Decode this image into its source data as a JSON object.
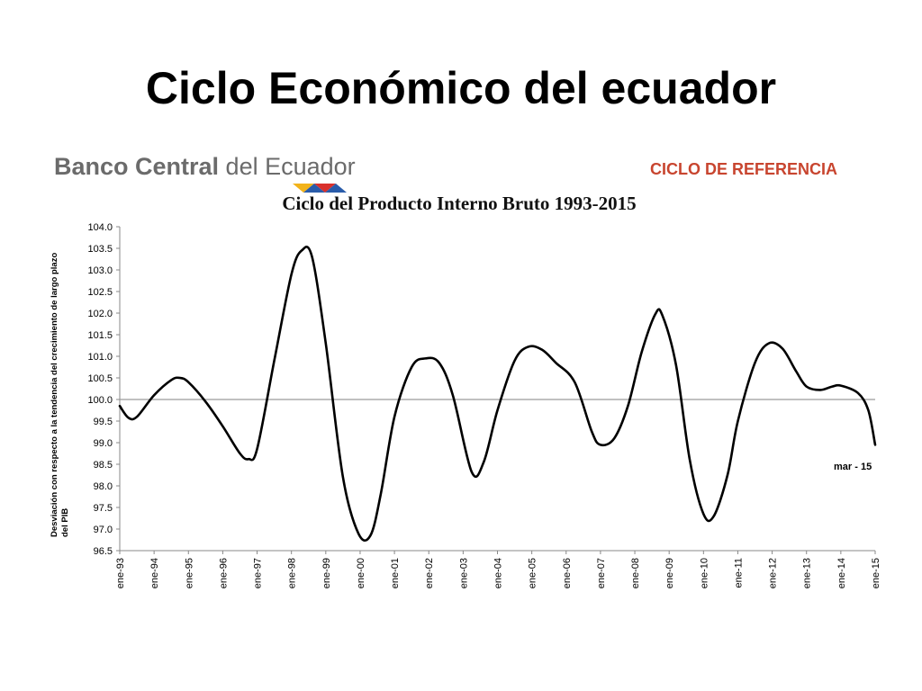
{
  "slide": {
    "title": "Ciclo Económico del ecuador"
  },
  "logo": {
    "bold_text": "Banco Central",
    "text": " del Ecuador",
    "colors": [
      "#f2b31b",
      "#2a5caa",
      "#d9302c"
    ]
  },
  "reference_label": "CICLO DE REFERENCIA",
  "chart_data": {
    "type": "line",
    "title": "Ciclo del Producto Interno Bruto 1993-2015",
    "ylabel_line1": "Desviación  con respecto a  la tendencia del crecimiento de largo plazo",
    "ylabel_line2": "del PIB",
    "ylim": [
      96.5,
      104.0
    ],
    "yticks": [
      "96.5",
      "97.0",
      "97.5",
      "98.0",
      "98.5",
      "99.0",
      "99.5",
      "100.0",
      "100.5",
      "101.0",
      "101.5",
      "102.0",
      "102.5",
      "103.0",
      "103.5",
      "104.0"
    ],
    "xlabels": [
      "ene-93",
      "ene-94",
      "ene-95",
      "ene-96",
      "ene-97",
      "ene-98",
      "ene-99",
      "ene-00",
      "ene-01",
      "ene-02",
      "ene-03",
      "ene-04",
      "ene-05",
      "ene-06",
      "ene-07",
      "ene-08",
      "ene-09",
      "ene-10",
      "ene-11",
      "ene-12",
      "ene-13",
      "ene-14",
      "ene-15"
    ],
    "xrange": [
      1993.0,
      2015.0
    ],
    "reference_line": 100.0,
    "grid": false,
    "annotation": "mar - 15",
    "series": [
      {
        "x": [
          1993.0,
          1993.25,
          1993.5,
          1994.0,
          1994.5,
          1994.75,
          1995.0,
          1995.5,
          1996.0,
          1996.5,
          1996.75,
          1997.0,
          1997.5,
          1998.0,
          1998.3,
          1998.6,
          1999.0,
          1999.5,
          1999.95,
          2000.3,
          2000.6,
          2001.0,
          2001.5,
          2001.9,
          2002.3,
          2002.7,
          2003.25,
          2003.6,
          2004.0,
          2004.5,
          2004.9,
          2005.3,
          2005.7,
          2006.25,
          2006.75,
          2007.0,
          2007.4,
          2007.8,
          2008.2,
          2008.6,
          2008.8,
          2009.2,
          2009.6,
          2010.0,
          2010.3,
          2010.7,
          2011.0,
          2011.5,
          2011.9,
          2012.3,
          2012.7,
          2013.0,
          2013.4,
          2013.75,
          2014.0,
          2014.5,
          2014.8,
          2015.0
        ],
        "y": [
          99.85,
          99.58,
          99.6,
          100.1,
          100.45,
          100.5,
          100.4,
          99.95,
          99.38,
          98.75,
          98.62,
          98.85,
          100.9,
          102.9,
          103.45,
          103.3,
          101.3,
          98.2,
          96.9,
          96.85,
          97.8,
          99.6,
          100.75,
          100.95,
          100.85,
          100.1,
          98.32,
          98.55,
          99.75,
          100.9,
          101.22,
          101.15,
          100.85,
          100.4,
          99.25,
          98.95,
          99.1,
          99.85,
          101.1,
          101.98,
          101.95,
          100.8,
          98.6,
          97.35,
          97.3,
          98.25,
          99.5,
          100.85,
          101.3,
          101.18,
          100.65,
          100.3,
          100.22,
          100.3,
          100.32,
          100.15,
          99.75,
          98.95
        ]
      }
    ]
  }
}
